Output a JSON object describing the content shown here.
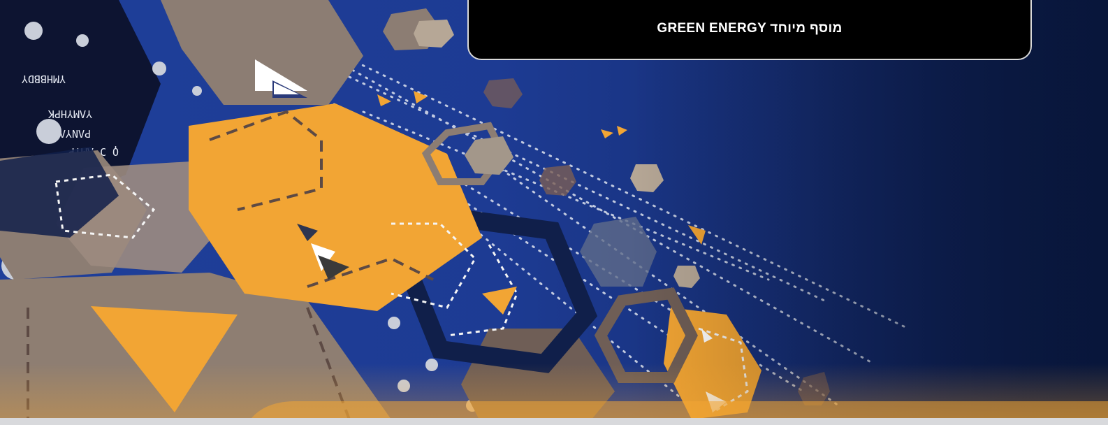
{
  "header": {
    "title": "GREEN ENERGY מוסף מיוחד"
  },
  "theme": {
    "background_blue": "#1f3f9a",
    "background_navy": "#0b1b44",
    "accent_orange": "#f2a534",
    "taupe": "#8c7d73",
    "dark_navy": "#101f4a",
    "dot_white": "#dfe4ef"
  },
  "decorations": [
    "hexagon-shape",
    "arrow-icon",
    "dotted-lines",
    "circuit-text"
  ]
}
